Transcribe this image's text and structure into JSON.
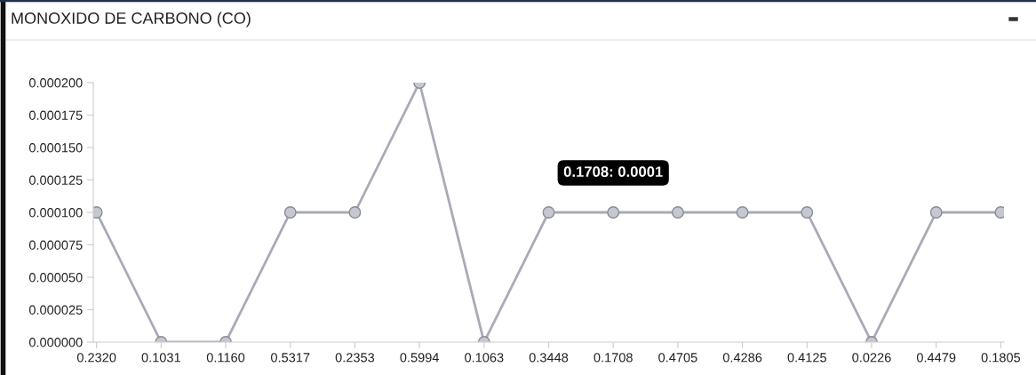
{
  "chart_data": {
    "type": "line",
    "title": "MONOXIDO DE CARBONO (CO)",
    "categories": [
      "0.2320",
      "0.1031",
      "0.1160",
      "0.5317",
      "0.2353",
      "0.5994",
      "0.1063",
      "0.3448",
      "0.1708",
      "0.4705",
      "0.4286",
      "0.4125",
      "0.0226",
      "0.4479",
      "0.1805"
    ],
    "series": [
      {
        "color": "#a9a9b8",
        "values": [
          0.0001,
          0,
          0,
          0.0001,
          0.0001,
          0.0002,
          0,
          0.0001,
          0.0001,
          0.0001,
          0.0001,
          0.0001,
          0,
          0.0001,
          0.0001
        ]
      }
    ],
    "ylim": [
      0,
      0.0002
    ],
    "yticks": [
      {
        "value": 0,
        "label": "0.000000"
      },
      {
        "value": 2.5e-05,
        "label": "0.000025"
      },
      {
        "value": 5e-05,
        "label": "0.000050"
      },
      {
        "value": 7.5e-05,
        "label": "0.000075"
      },
      {
        "value": 0.0001,
        "label": "0.000100"
      },
      {
        "value": 0.000125,
        "label": "0.000125"
      },
      {
        "value": 0.00015,
        "label": "0.000150"
      },
      {
        "value": 0.000175,
        "label": "0.000175"
      },
      {
        "value": 0.0002,
        "label": "0.000200"
      }
    ],
    "annotations": [
      {
        "text": "0.1708: 0.0001",
        "x": "0.1708",
        "y": 0.0001
      }
    ],
    "marker": "circle",
    "line_style": "solid",
    "grid": false,
    "legend": false
  }
}
